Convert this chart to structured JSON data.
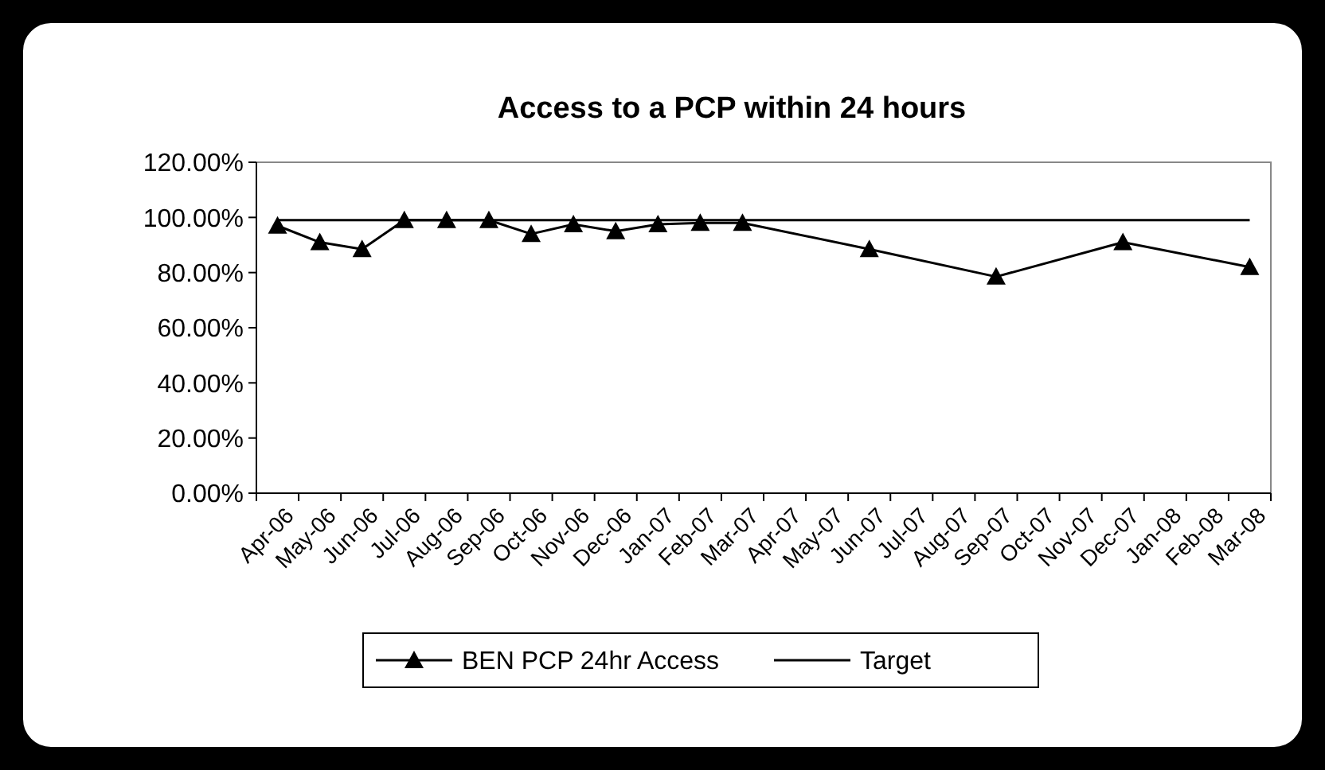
{
  "chart_data": {
    "type": "line",
    "title": "Access to a PCP within 24 hours",
    "categories": [
      "Apr-06",
      "May-06",
      "Jun-06",
      "Jul-06",
      "Aug-06",
      "Sep-06",
      "Oct-06",
      "Nov-06",
      "Dec-06",
      "Jan-07",
      "Feb-07",
      "Mar-07",
      "Apr-07",
      "May-07",
      "Jun-07",
      "Jul-07",
      "Aug-07",
      "Sep-07",
      "Oct-07",
      "Nov-07",
      "Dec-07",
      "Jan-08",
      "Feb-08",
      "Mar-08"
    ],
    "series": [
      {
        "name": "BEN PCP 24hr Access",
        "color": "#000000",
        "marker": "triangle",
        "values": [
          97,
          91,
          88.5,
          99,
          99,
          99,
          94,
          97.5,
          95,
          97.5,
          98,
          98,
          null,
          null,
          88.5,
          null,
          null,
          78.5,
          null,
          null,
          91,
          null,
          null,
          82
        ]
      },
      {
        "name": "Target",
        "color": "#000000",
        "marker": "none",
        "values": [
          99,
          99,
          99,
          99,
          99,
          99,
          99,
          99,
          99,
          99,
          99,
          99,
          99,
          99,
          99,
          99,
          99,
          99,
          99,
          99,
          99,
          99,
          99,
          99
        ]
      }
    ],
    "ylim": [
      0,
      120
    ],
    "yticks": [
      {
        "value": 0,
        "label": "0.00%"
      },
      {
        "value": 20,
        "label": "20.00%"
      },
      {
        "value": 40,
        "label": "40.00%"
      },
      {
        "value": 60,
        "label": "60.00%"
      },
      {
        "value": 80,
        "label": "80.00%"
      },
      {
        "value": 100,
        "label": "100.00%"
      },
      {
        "value": 120,
        "label": "120.00%"
      }
    ],
    "grid": false,
    "legend": "bottom",
    "line_style": "solid"
  }
}
